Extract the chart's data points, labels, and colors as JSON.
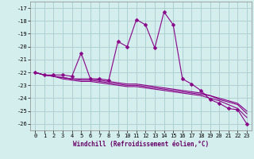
{
  "xlabel": "Windchill (Refroidissement éolien,°C)",
  "bg_color": "#d4eeee",
  "grid_color": "#aacccc",
  "line_color": "#880088",
  "x": [
    0,
    1,
    2,
    3,
    4,
    5,
    6,
    7,
    8,
    9,
    10,
    11,
    12,
    13,
    14,
    15,
    16,
    17,
    18,
    19,
    20,
    21,
    22,
    23
  ],
  "series1": [
    -22.0,
    -22.2,
    -22.2,
    -22.2,
    -22.3,
    -20.5,
    -22.5,
    -22.5,
    -22.6,
    -19.6,
    -20.0,
    -17.9,
    -18.3,
    -20.1,
    -17.3,
    -18.3,
    -22.5,
    -22.9,
    -23.4,
    -24.1,
    -24.4,
    -24.8,
    -24.9,
    -26.0
  ],
  "series2": [
    -22.0,
    -22.2,
    -22.3,
    -22.4,
    -22.5,
    -22.5,
    -22.5,
    -22.6,
    -22.7,
    -22.8,
    -22.9,
    -22.9,
    -23.0,
    -23.1,
    -23.2,
    -23.3,
    -23.4,
    -23.5,
    -23.6,
    -23.8,
    -24.0,
    -24.2,
    -24.4,
    -25.0
  ],
  "series3": [
    -22.0,
    -22.2,
    -22.3,
    -22.4,
    -22.5,
    -22.6,
    -22.6,
    -22.7,
    -22.8,
    -22.9,
    -23.0,
    -23.0,
    -23.1,
    -23.2,
    -23.3,
    -23.4,
    -23.5,
    -23.6,
    -23.7,
    -23.8,
    -24.1,
    -24.3,
    -24.5,
    -25.2
  ],
  "series4": [
    -22.0,
    -22.2,
    -22.3,
    -22.5,
    -22.6,
    -22.7,
    -22.7,
    -22.8,
    -22.9,
    -23.0,
    -23.1,
    -23.1,
    -23.2,
    -23.3,
    -23.4,
    -23.5,
    -23.6,
    -23.7,
    -23.8,
    -24.0,
    -24.2,
    -24.5,
    -24.8,
    -25.5
  ],
  "ylim": [
    -26.5,
    -16.5
  ],
  "yticks": [
    -26,
    -25,
    -24,
    -23,
    -22,
    -21,
    -20,
    -19,
    -18,
    -17
  ],
  "xticks": [
    0,
    1,
    2,
    3,
    4,
    5,
    6,
    7,
    8,
    9,
    10,
    11,
    12,
    13,
    14,
    15,
    16,
    17,
    18,
    19,
    20,
    21,
    22,
    23
  ],
  "marker_size": 2.5,
  "line_width": 0.8,
  "tick_fontsize": 5.0,
  "xlabel_fontsize": 5.5
}
